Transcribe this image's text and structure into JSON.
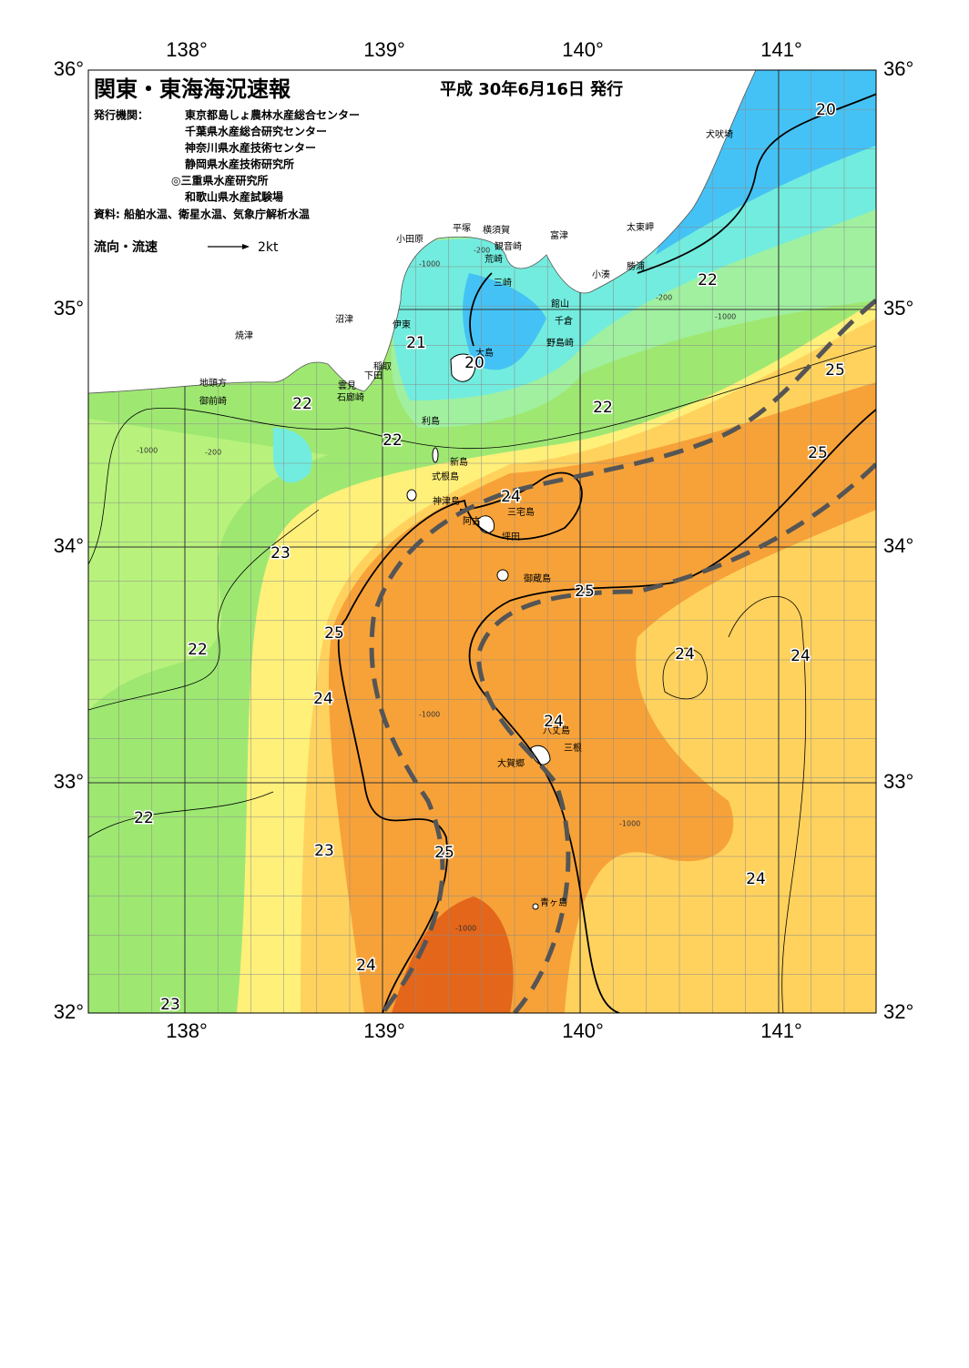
{
  "header": {
    "title": "関東・東海海況速報",
    "date": "平成 30年6月16日 発行",
    "issuer_label": "発行機関：",
    "issuers": [
      "東京都島しょ農林水産総合センター",
      "千葉県水産総合研究センター",
      "神奈川県水産技術センター",
      "静岡県水産技術研究所",
      "◎三重県水産研究所",
      "和歌山県水産試験場"
    ],
    "source": "資料: 船舶水温、衛星水温、気象庁解析水温",
    "legend_label": "流向・流速",
    "legend_speed": "2kt"
  },
  "axes": {
    "longitude": [
      "138°",
      "139°",
      "140°",
      "141°"
    ],
    "latitude": [
      "36°",
      "35°",
      "34°",
      "33°",
      "32°"
    ]
  },
  "places": [
    "犬吠埼",
    "太東岬",
    "勝浦",
    "小湊",
    "富津",
    "横須賀",
    "平塚",
    "小田原",
    "観音崎",
    "荒崎",
    "三崎",
    "館山",
    "千倉",
    "野島崎",
    "沼津",
    "伊東",
    "焼津",
    "稲取",
    "下田",
    "雲見",
    "石廊崎",
    "地頭方",
    "御前崎",
    "大島",
    "利島",
    "新島",
    "式根島",
    "神津島",
    "三宅島",
    "阿古",
    "坪田",
    "御蔵島",
    "八丈島",
    "三根",
    "大賀郷",
    "青ヶ島"
  ],
  "isotherm_labels": [
    20,
    22,
    21,
    20,
    22,
    22,
    22,
    25,
    25,
    24,
    23,
    25,
    25,
    22,
    24,
    24,
    24,
    24,
    22,
    23,
    25,
    24,
    24,
    23
  ],
  "depth_labels": [
    "-200",
    "-1000",
    "-200",
    "-1000",
    "-200",
    "-1000",
    "-1000",
    "-1000",
    "-1000"
  ]
}
